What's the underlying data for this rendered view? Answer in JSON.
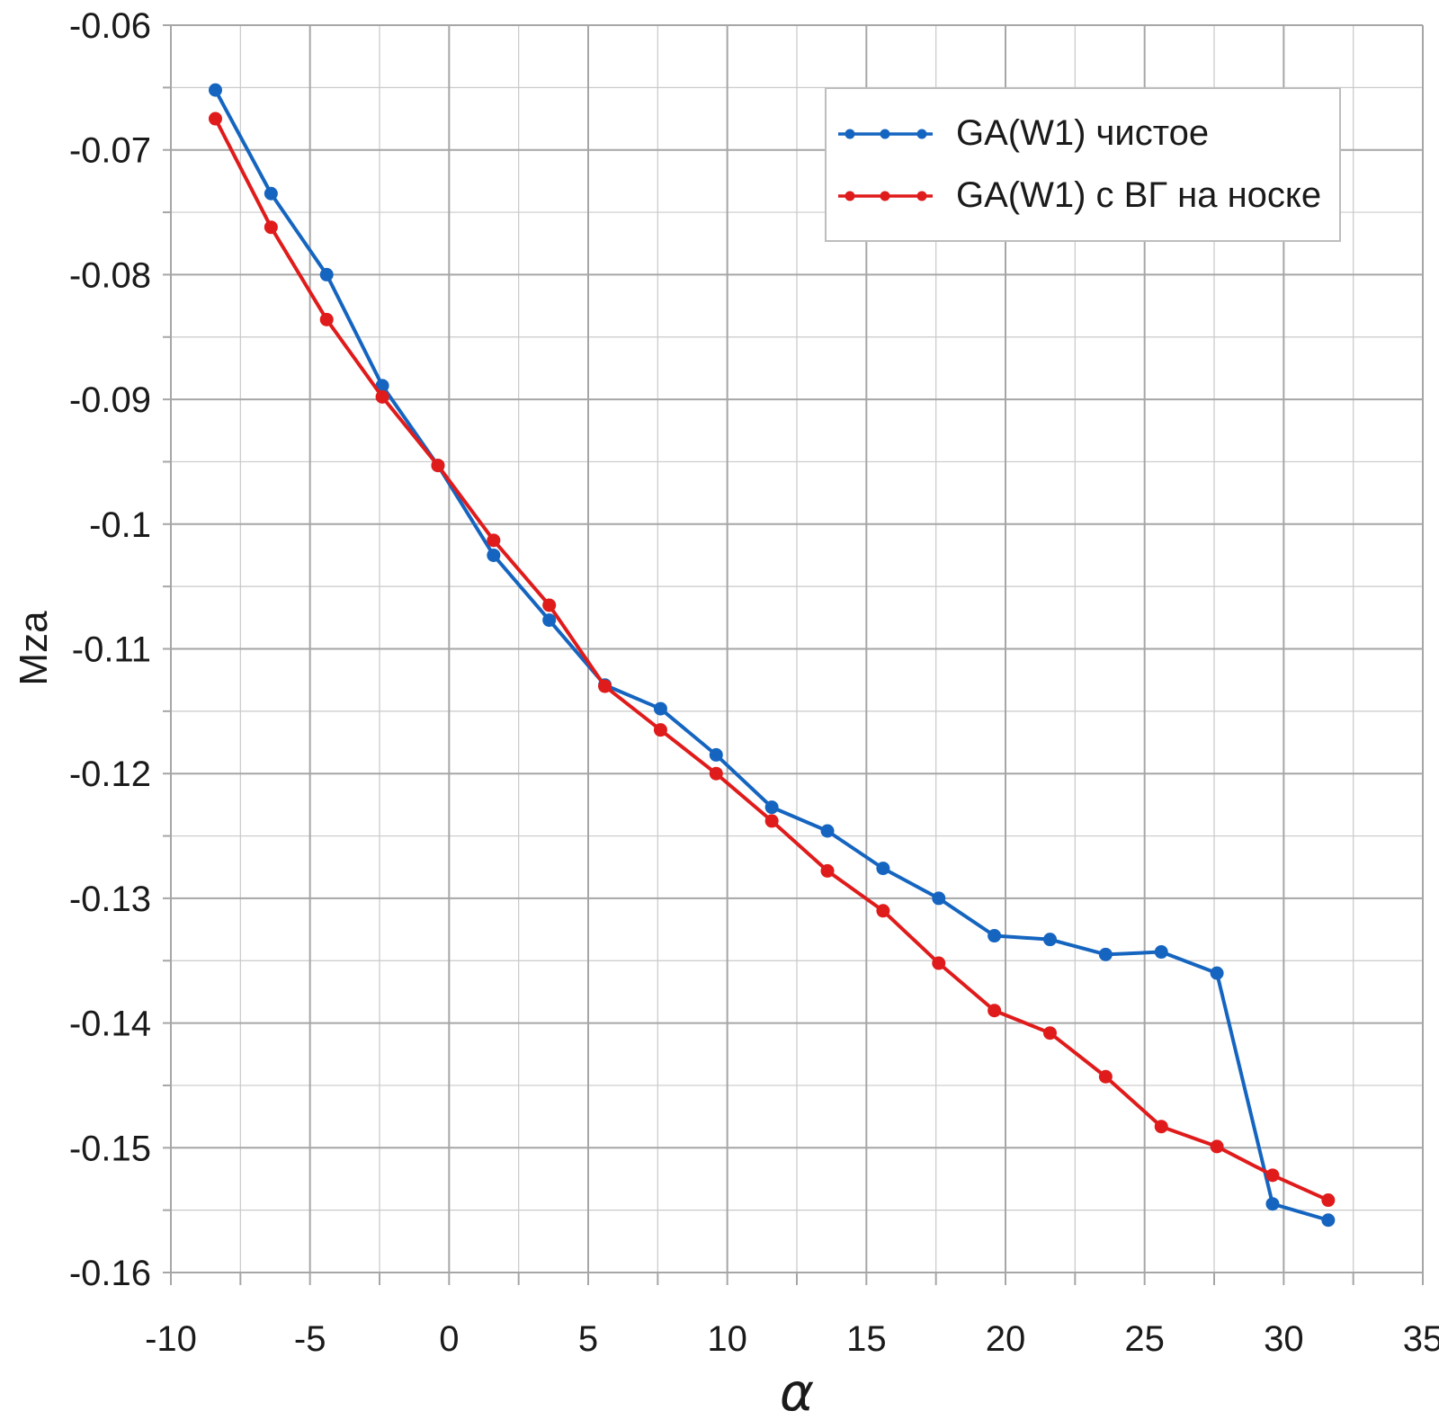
{
  "chart_data": {
    "type": "line",
    "title": "",
    "xlabel": "α",
    "ylabel": "Mza",
    "xlim": [
      -10,
      35
    ],
    "ylim": [
      -0.16,
      -0.06
    ],
    "x_minor_step": 2.5,
    "y_minor_step": 0.005,
    "grid": "on",
    "legend_position": "top-right",
    "x_ticks": [
      {
        "v": -10,
        "label": "-10"
      },
      {
        "v": -5,
        "label": "-5"
      },
      {
        "v": 0,
        "label": "0"
      },
      {
        "v": 5,
        "label": "5"
      },
      {
        "v": 10,
        "label": "10"
      },
      {
        "v": 15,
        "label": "15"
      },
      {
        "v": 20,
        "label": "20"
      },
      {
        "v": 25,
        "label": "25"
      },
      {
        "v": 30,
        "label": "30"
      },
      {
        "v": 35,
        "label": "35"
      }
    ],
    "y_ticks": [
      {
        "v": -0.06,
        "label": "-0.06"
      },
      {
        "v": -0.07,
        "label": "-0.07"
      },
      {
        "v": -0.08,
        "label": "-0.08"
      },
      {
        "v": -0.09,
        "label": "-0.09"
      },
      {
        "v": -0.1,
        "label": "-0.1"
      },
      {
        "v": -0.11,
        "label": "-0.11"
      },
      {
        "v": -0.12,
        "label": "-0.12"
      },
      {
        "v": -0.13,
        "label": "-0.13"
      },
      {
        "v": -0.14,
        "label": "-0.14"
      },
      {
        "v": -0.15,
        "label": "-0.15"
      },
      {
        "v": -0.16,
        "label": "-0.16"
      }
    ],
    "series": [
      {
        "name": "GA(W1) чистое",
        "color": "#1565c0",
        "x": [
          -8.4,
          -6.4,
          -4.4,
          -2.4,
          -0.4,
          1.6,
          3.6,
          5.6,
          7.6,
          9.6,
          11.6,
          13.6,
          15.6,
          17.6,
          19.6,
          21.6,
          23.6,
          25.6,
          27.6,
          29.6,
          31.6
        ],
        "y": [
          -0.0652,
          -0.0735,
          -0.08,
          -0.0889,
          -0.0953,
          -0.1025,
          -0.1077,
          -0.1129,
          -0.1148,
          -0.1185,
          -0.1227,
          -0.1246,
          -0.1276,
          -0.13,
          -0.133,
          -0.1333,
          -0.1345,
          -0.1343,
          -0.136,
          -0.1545,
          -0.1558
        ]
      },
      {
        "name": "GA(W1) с ВГ на носке",
        "color": "#e01b1b",
        "x": [
          -8.4,
          -6.4,
          -4.4,
          -2.4,
          -0.4,
          1.6,
          3.6,
          5.6,
          7.6,
          9.6,
          11.6,
          13.6,
          15.6,
          17.6,
          19.6,
          21.6,
          23.6,
          25.6,
          27.6,
          29.6,
          31.6
        ],
        "y": [
          -0.0675,
          -0.0762,
          -0.0836,
          -0.0898,
          -0.0953,
          -0.1013,
          -0.1065,
          -0.113,
          -0.1165,
          -0.12,
          -0.1238,
          -0.1278,
          -0.131,
          -0.1352,
          -0.139,
          -0.1408,
          -0.1443,
          -0.1483,
          -0.1499,
          -0.1522,
          -0.1542
        ]
      }
    ],
    "style": {
      "grid_minor_color": "#c9c9c9",
      "grid_major_color": "#a6a6a6",
      "text_color": "#1a1a1a",
      "marker_radius": 7.5,
      "line_width": 4
    }
  }
}
